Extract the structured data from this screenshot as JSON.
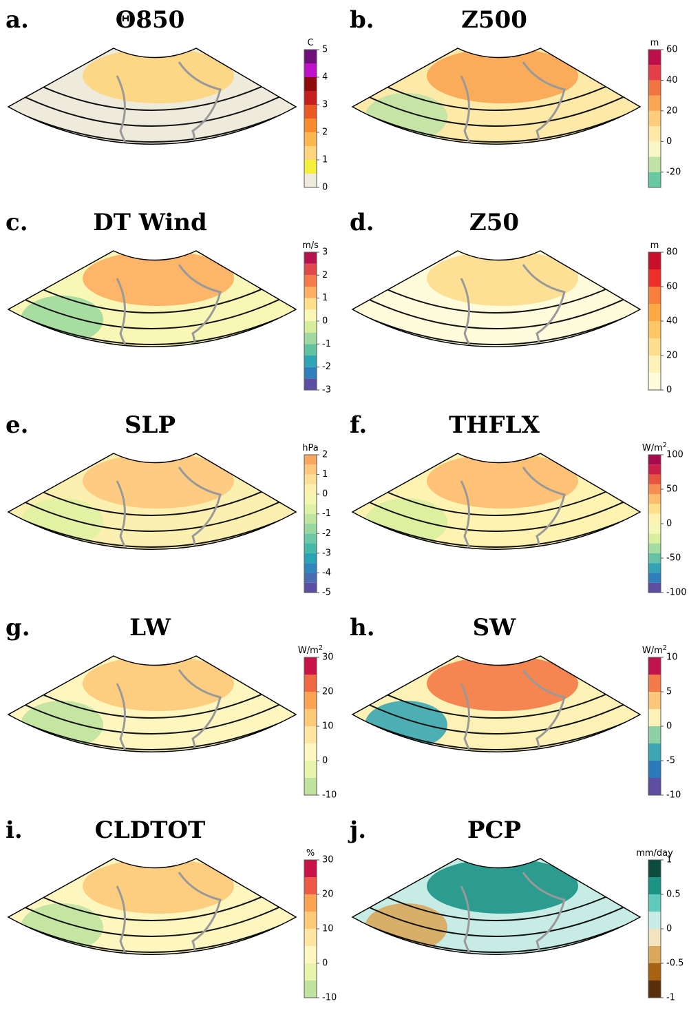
{
  "panels": [
    {
      "label": "a.",
      "title": "Θ850",
      "unit": "C",
      "lim": [
        0,
        5
      ],
      "ticks": [
        0,
        1,
        2,
        3,
        4,
        5
      ],
      "colors": [
        "#eeebdc",
        "#f5f03a",
        "#fdd57c",
        "#fdb74f",
        "#f98b2c",
        "#ec5a24",
        "#c51f1f",
        "#8f0b0b",
        "#c110c9",
        "#6e0f7a"
      ]
    },
    {
      "label": "b.",
      "title": "Z500",
      "unit": "m",
      "lim": [
        -30,
        60
      ],
      "ticks": [
        -20,
        0,
        20,
        40,
        60
      ],
      "colors": [
        "#67c9a0",
        "#bfe3a4",
        "#f7f6c4",
        "#fde9a8",
        "#fdcd7c",
        "#f9a551",
        "#f2743e",
        "#e53e48",
        "#bf0f4a"
      ]
    },
    {
      "label": "c.",
      "title": "DT Wind",
      "unit": "m/s",
      "lim": [
        -3,
        3
      ],
      "ticks": [
        -3,
        -2,
        -1,
        0,
        1,
        2,
        3
      ],
      "colors": [
        "#5e4fa2",
        "#2e7fbc",
        "#2fa6b5",
        "#5fc3a0",
        "#9fd9a0",
        "#d6ee9b",
        "#f8f7b6",
        "#fee08b",
        "#fdae61",
        "#f67a4b",
        "#e04a4a",
        "#b8124f"
      ]
    },
    {
      "label": "d.",
      "title": "Z50",
      "unit": "m",
      "lim": [
        0,
        80
      ],
      "ticks": [
        0,
        20,
        40,
        60,
        80
      ],
      "colors": [
        "#fffcdc",
        "#fff2b8",
        "#fedd8d",
        "#fdc766",
        "#fca945",
        "#f8803a",
        "#ee2e28",
        "#c8102a"
      ]
    },
    {
      "label": "e.",
      "title": "SLP",
      "unit": "hPa",
      "lim": [
        -5,
        2
      ],
      "ticks": [
        -5,
        -4,
        -3,
        -2,
        -1,
        0,
        1,
        2
      ],
      "colors": [
        "#5e4fa2",
        "#4a6cb3",
        "#2e86bc",
        "#2aa3b4",
        "#44b9a8",
        "#6cc8a4",
        "#98d8a0",
        "#c0e5a0",
        "#dff1a2",
        "#f2f6ae",
        "#fcf0b0",
        "#fddf95",
        "#fdc77d",
        "#f8a85f"
      ]
    },
    {
      "label": "f.",
      "title": "THFLX",
      "unit": "W/m",
      "unit_sup": "2",
      "lim": [
        -100,
        100
      ],
      "ticks": [
        -100,
        -50,
        0,
        50,
        100
      ],
      "colors": [
        "#5e4fa2",
        "#2e7fbc",
        "#31a3b5",
        "#66c2a5",
        "#a4dba2",
        "#d8ef9e",
        "#f4f8b6",
        "#fef3b0",
        "#fee08b",
        "#fdbd6f",
        "#f88d52",
        "#e8553f",
        "#cd2048",
        "#a8094c"
      ]
    },
    {
      "label": "g.",
      "title": "LW",
      "unit": "W/m",
      "unit_sup": "2",
      "lim": [
        -10,
        30
      ],
      "ticks": [
        -10,
        0,
        10,
        20,
        30
      ],
      "colors": [
        "#bfe39f",
        "#e8f3ab",
        "#fdf6bf",
        "#fee5a2",
        "#fdca78",
        "#f9a353",
        "#ef6a43",
        "#c91348"
      ]
    },
    {
      "label": "h.",
      "title": "SW",
      "unit": "W/m",
      "unit_sup": "2",
      "lim": [
        -10,
        10
      ],
      "ticks": [
        -10,
        -5,
        0,
        5,
        10
      ],
      "colors": [
        "#5e4fa2",
        "#2b7bba",
        "#3aa7b3",
        "#8cd0a4",
        "#fdf2b6",
        "#fdc77a",
        "#f47a47",
        "#c0124c"
      ]
    },
    {
      "label": "i.",
      "title": "CLDTOT",
      "unit": "%",
      "lim": [
        -10,
        30
      ],
      "ticks": [
        -10,
        0,
        10,
        20,
        30
      ],
      "colors": [
        "#bfe39f",
        "#e8f3ab",
        "#fdf6bf",
        "#fee5a2",
        "#fdca78",
        "#f9a353",
        "#ef5a48",
        "#c91348"
      ]
    },
    {
      "label": "j.",
      "title": "PCP",
      "unit": "mm/day",
      "lim": [
        -1,
        1
      ],
      "ticks": [
        -1,
        -0.5,
        0,
        0.5,
        1
      ],
      "colors": [
        "#5a2e08",
        "#a9620f",
        "#d9a85a",
        "#f4e3bf",
        "#c7ece6",
        "#5fc9bb",
        "#1b9486",
        "#0b4c3f"
      ]
    }
  ]
}
